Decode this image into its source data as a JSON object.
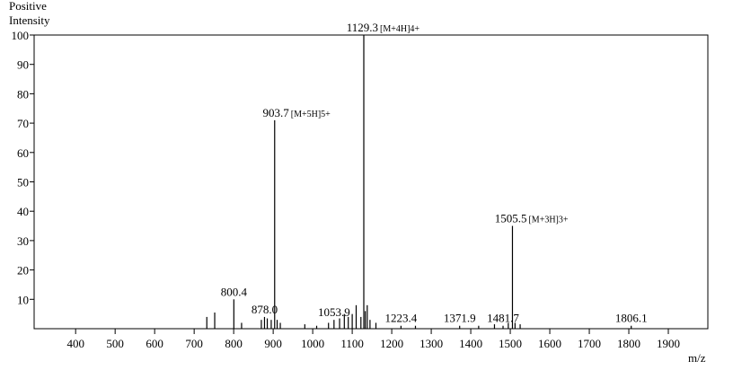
{
  "chart_data": {
    "type": "stick",
    "ylabel": [
      "Positive",
      "Intensity"
    ],
    "xlabel": "m/z",
    "xlim": [
      295,
      2000
    ],
    "xticks": [
      400,
      500,
      600,
      700,
      800,
      900,
      1000,
      1100,
      1200,
      1300,
      1400,
      1500,
      1600,
      1700,
      1800,
      1900
    ],
    "ylim": [
      0,
      100
    ],
    "yticks": [
      10,
      20,
      30,
      40,
      50,
      60,
      70,
      80,
      90,
      100
    ],
    "color": "#000000",
    "x": [
      732,
      752,
      800.4,
      820,
      870,
      878.0,
      885,
      895,
      903.7,
      910,
      918,
      980,
      1010,
      1040,
      1053.9,
      1068,
      1080,
      1090,
      1100,
      1110,
      1122,
      1129.3,
      1133,
      1138,
      1145,
      1160,
      1223.4,
      1260,
      1371.9,
      1420,
      1460,
      1481.7,
      1495,
      1505.5,
      1512,
      1525,
      1806.1
    ],
    "values": [
      4,
      5.5,
      10,
      2,
      3,
      4,
      3.5,
      3,
      71,
      3,
      2,
      1.5,
      1,
      2,
      3,
      3.5,
      5,
      4,
      5,
      8,
      4,
      100,
      6,
      8,
      3,
      2,
      1,
      1,
      1,
      1,
      1.5,
      1,
      2,
      35,
      2,
      1.5,
      1
    ],
    "x_labels": [
      null,
      null,
      "800.4",
      null,
      null,
      "878.0",
      null,
      null,
      "903.7",
      null,
      null,
      null,
      null,
      null,
      "1053.9",
      null,
      null,
      null,
      null,
      null,
      null,
      "1129.3",
      null,
      null,
      null,
      null,
      "1223.4",
      null,
      "1371.9",
      null,
      null,
      "1481.7",
      null,
      "1505.5",
      null,
      null,
      "1806.1"
    ],
    "annotations": [
      null,
      null,
      null,
      null,
      null,
      null,
      null,
      null,
      "[M+5H]5+",
      null,
      null,
      null,
      null,
      null,
      null,
      null,
      null,
      null,
      null,
      null,
      null,
      "[M+4H]4+",
      null,
      null,
      null,
      null,
      null,
      null,
      null,
      null,
      null,
      null,
      null,
      "[M+3H]3+",
      null,
      null,
      null
    ]
  }
}
